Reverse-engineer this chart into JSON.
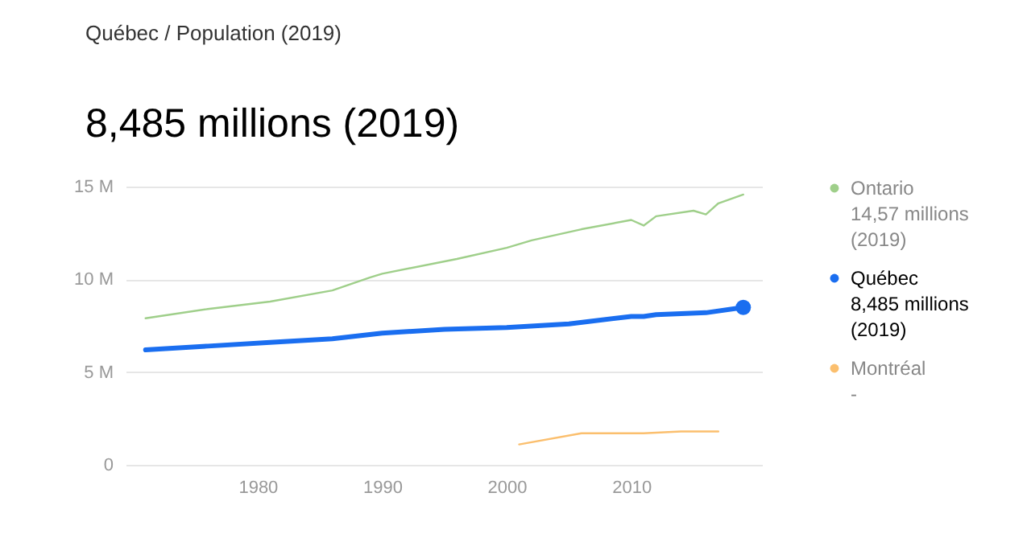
{
  "chart_data": {
    "type": "line",
    "subtitle": "Québec / Population (2019)",
    "title": "8,485 millions (2019)",
    "xlim": [
      1969.4,
      2020.5
    ],
    "xticks": [
      1980,
      1990,
      2000,
      2010
    ],
    "ylim": [
      0,
      15
    ],
    "yticks": [
      {
        "value": 0,
        "label": "0"
      },
      {
        "value": 5,
        "label": "5 M"
      },
      {
        "value": 10,
        "label": "10 M"
      },
      {
        "value": 15,
        "label": "15 M"
      }
    ],
    "grid": "y",
    "legend": "right",
    "annotations": [
      "14,57 millions (2019)",
      "8,485 millions (2019)",
      "-"
    ],
    "series": [
      {
        "name": "Ontario",
        "color": "#9fcf8a",
        "x": [
          1971,
          1976,
          1981,
          1986,
          1989,
          1990,
          1996,
          2000,
          2002,
          2006,
          2010,
          2011,
          2012,
          2015,
          2016,
          2017,
          2019
        ],
        "values": [
          7.9,
          8.4,
          8.8,
          9.4,
          10.1,
          10.3,
          11.1,
          11.7,
          12.1,
          12.7,
          13.2,
          12.9,
          13.4,
          13.7,
          13.5,
          14.1,
          14.57
        ]
      },
      {
        "name": "Québec",
        "color": "#1a6ef0",
        "x": [
          1971,
          1976,
          1981,
          1986,
          1990,
          1995,
          2000,
          2005,
          2010,
          2011,
          2012,
          2016,
          2019
        ],
        "values": [
          6.2,
          6.4,
          6.6,
          6.8,
          7.1,
          7.3,
          7.4,
          7.6,
          8.0,
          8.0,
          8.1,
          8.2,
          8.485
        ]
      },
      {
        "name": "Montréal",
        "color": "#fbbf6e",
        "x": [
          2001,
          2006,
          2011,
          2014,
          2017
        ],
        "values": [
          1.1,
          1.7,
          1.7,
          1.8,
          1.8
        ]
      },
      {
        "type": "scatter",
        "color": "#1a6ef0",
        "x": [
          2019
        ],
        "values": [
          8.485
        ]
      }
    ]
  }
}
